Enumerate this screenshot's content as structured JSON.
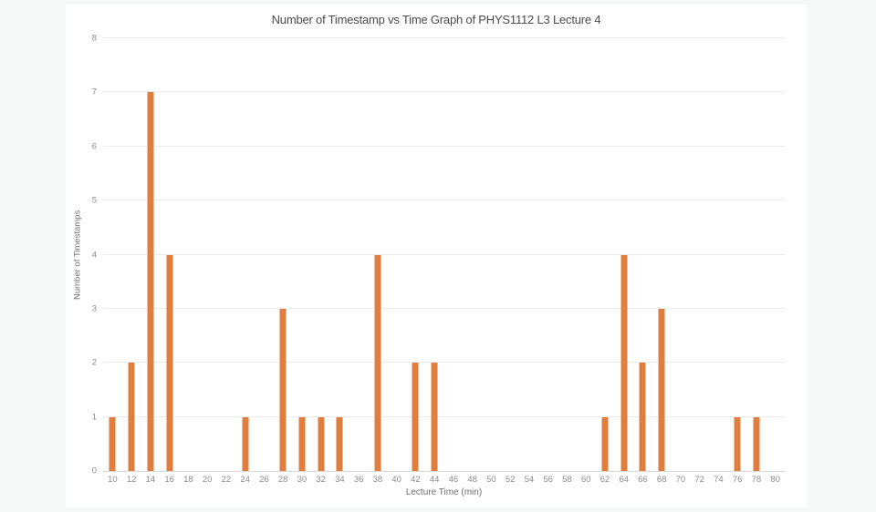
{
  "page": {
    "background_color": "#f7f8f8",
    "card_color": "#ffffff"
  },
  "chart_data": {
    "type": "bar",
    "title": "Number of Timestamp vs Time Graph of PHYS1112 L3 Lecture 4",
    "xlabel": "Lecture Time (min)",
    "ylabel": "Number of Timestamps",
    "categories": [
      10,
      12,
      14,
      16,
      18,
      20,
      22,
      24,
      26,
      28,
      30,
      32,
      34,
      36,
      38,
      40,
      42,
      44,
      46,
      48,
      50,
      52,
      54,
      56,
      58,
      60,
      62,
      64,
      66,
      68,
      70,
      72,
      74,
      76,
      78,
      80
    ],
    "values": [
      1,
      2,
      7,
      4,
      0,
      0,
      0,
      1,
      0,
      3,
      1,
      1,
      1,
      0,
      4,
      0,
      2,
      2,
      0,
      0,
      0,
      0,
      0,
      0,
      0,
      0,
      1,
      4,
      2,
      3,
      0,
      0,
      0,
      1,
      1,
      0
    ],
    "y_ticks": [
      0,
      1,
      2,
      3,
      4,
      5,
      6,
      7,
      8
    ],
    "ylim": [
      0,
      8
    ],
    "bar_color": "#df7e3e",
    "grid_color": "#ececec",
    "axis_line_color": "#d9d9d9",
    "grid": true,
    "legend": "none"
  }
}
